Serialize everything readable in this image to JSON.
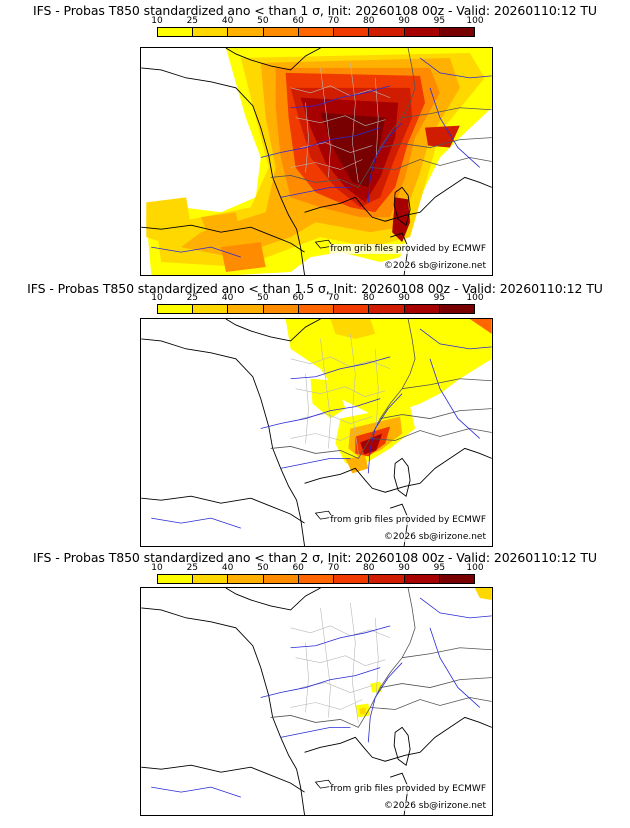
{
  "colorbar": {
    "ticks": [
      "10",
      "25",
      "40",
      "50",
      "60",
      "70",
      "80",
      "90",
      "95",
      "100"
    ],
    "colors": [
      "#ffff00",
      "#ffd800",
      "#ffb000",
      "#ff8c00",
      "#ff6600",
      "#f03a00",
      "#d01c00",
      "#a60000",
      "#780000"
    ]
  },
  "panels": [
    {
      "title": "IFS - Probas T850  standardized ano < than 1 σ, Init: 20260108 00z - Valid: 20260110:12 TU",
      "credit_source": "from grib files provided by ECMWF",
      "credit_copyright": "©2026 sb@irizone.net"
    },
    {
      "title": "IFS - Probas T850  standardized ano < than 1.5 σ, Init: 20260108 00z - Valid: 20260110:12 TU",
      "credit_source": "from grib files provided by ECMWF",
      "credit_copyright": "©2026 sb@irizone.net"
    },
    {
      "title": "IFS - Probas T850  standardized ano < than 2 σ, Init: 20260108 00z - Valid: 20260110:12 TU",
      "credit_source": "from grib files provided by ECMWF",
      "credit_copyright": "©2026 sb@irizone.net"
    }
  ]
}
